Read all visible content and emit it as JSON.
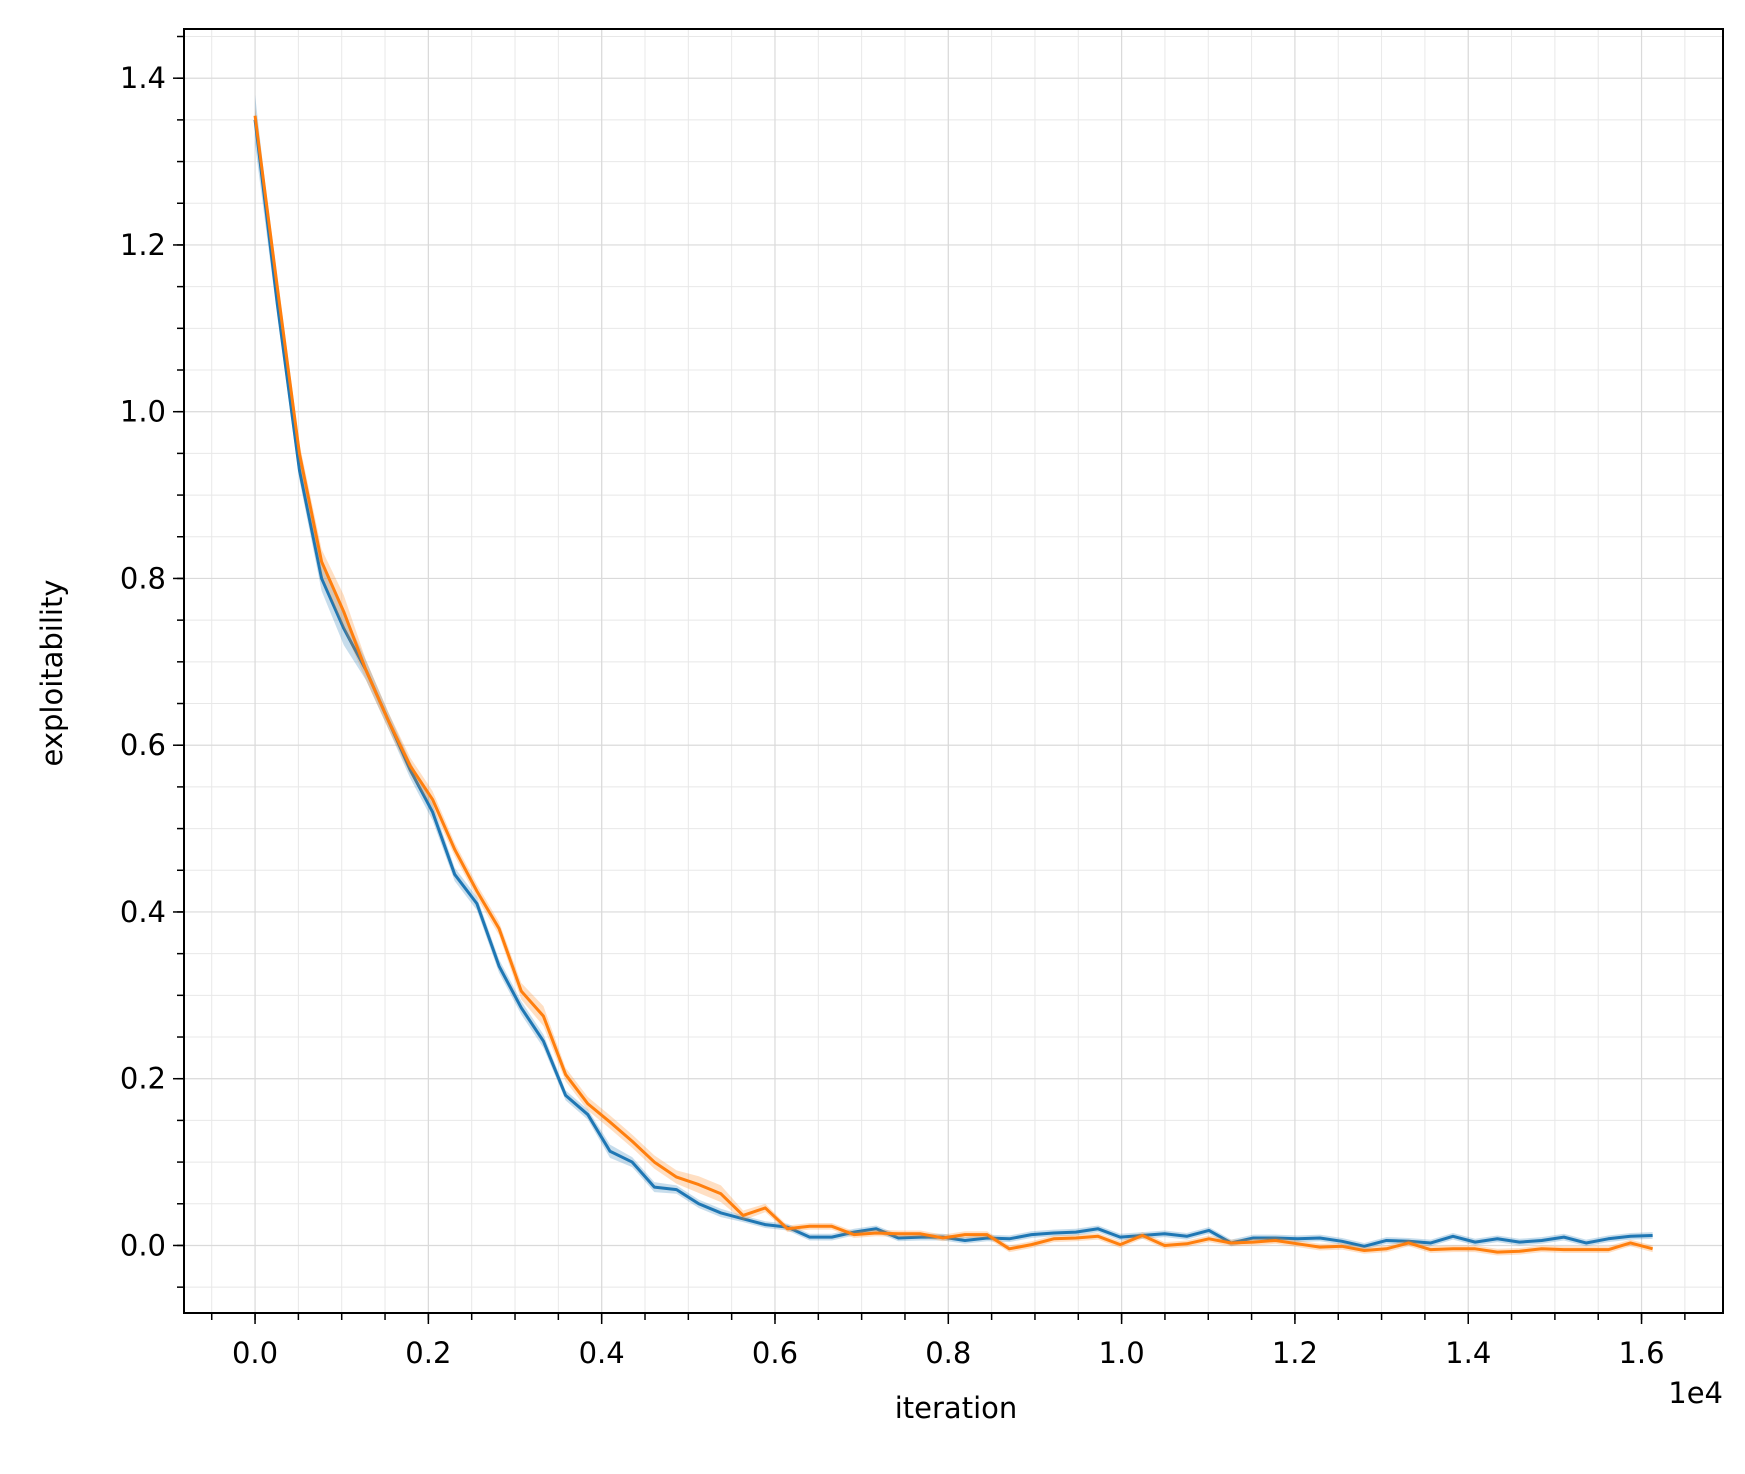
{
  "chart_data": {
    "type": "line",
    "xlabel": "iteration",
    "ylabel": "exploitability",
    "x_offset_text": "1e4",
    "x": [
      0,
      0.0256,
      0.0512,
      0.0768,
      0.1024,
      0.128,
      0.1536,
      0.1792,
      0.2048,
      0.2304,
      0.256,
      0.2816,
      0.3072,
      0.3328,
      0.3584,
      0.384,
      0.4096,
      0.4352,
      0.4608,
      0.4864,
      0.512,
      0.5376,
      0.5632,
      0.5888,
      0.6144,
      0.64,
      0.6656,
      0.6912,
      0.7168,
      0.7424,
      0.768,
      0.7936,
      0.8192,
      0.8448,
      0.8704,
      0.896,
      0.9216,
      0.9472,
      0.9728,
      0.9984,
      1.024,
      1.0496,
      1.0752,
      1.1008,
      1.1264,
      1.152,
      1.1776,
      1.2032,
      1.2288,
      1.2544,
      1.28,
      1.3056,
      1.3312,
      1.3568,
      1.3824,
      1.408,
      1.4336,
      1.4592,
      1.4848,
      1.5104,
      1.536,
      1.5616,
      1.5872,
      1.6128
    ],
    "series": [
      {
        "color": "#1f77b4",
        "values": [
          1.35,
          1.13,
          0.93,
          0.8,
          0.74,
          0.69,
          0.63,
          0.57,
          0.52,
          0.445,
          0.41,
          0.335,
          0.285,
          0.245,
          0.18,
          0.157,
          0.113,
          0.1,
          0.07,
          0.067,
          0.05,
          0.039,
          0.032,
          0.025,
          0.022,
          0.01,
          0.01,
          0.016,
          0.02,
          0.009,
          0.01,
          0.01,
          0.006,
          0.009,
          0.008,
          0.013,
          0.015,
          0.016,
          0.02,
          0.01,
          0.012,
          0.014,
          0.011,
          0.018,
          0.003,
          0.009,
          0.009,
          0.008,
          0.009,
          0.005,
          -0.001,
          0.006,
          0.005,
          0.003,
          0.011,
          0.004,
          0.008,
          0.004,
          0.006,
          0.01,
          0.003,
          0.008,
          0.011,
          0.012
        ],
        "errors": [
          0.03,
          0.015,
          0.012,
          0.015,
          0.02,
          0.012,
          0.01,
          0.01,
          0.01,
          0.008,
          0.008,
          0.008,
          0.008,
          0.008,
          0.006,
          0.006,
          0.008,
          0.006,
          0.006,
          0.005,
          0.005,
          0.005,
          0.004,
          0.004,
          0.004,
          0.004,
          0.004,
          0.004,
          0.004,
          0.004,
          0.004,
          0.004,
          0.004,
          0.004,
          0.004,
          0.004,
          0.004,
          0.004,
          0.004,
          0.004,
          0.004,
          0.004,
          0.004,
          0.004,
          0.004,
          0.004,
          0.004,
          0.004,
          0.004,
          0.004,
          0.004,
          0.004,
          0.004,
          0.004,
          0.004,
          0.004,
          0.004,
          0.004,
          0.004,
          0.004,
          0.004,
          0.004,
          0.004,
          0.004
        ]
      },
      {
        "color": "#ff7f0e",
        "values": [
          1.355,
          1.15,
          0.95,
          0.82,
          0.76,
          0.69,
          0.63,
          0.575,
          0.535,
          0.475,
          0.425,
          0.38,
          0.305,
          0.275,
          0.205,
          0.17,
          0.148,
          0.125,
          0.1,
          0.082,
          0.073,
          0.062,
          0.036,
          0.045,
          0.02,
          0.023,
          0.023,
          0.013,
          0.015,
          0.014,
          0.014,
          0.009,
          0.013,
          0.013,
          -0.004,
          0.001,
          0.008,
          0.009,
          0.011,
          0.001,
          0.012,
          0.0,
          0.002,
          0.008,
          0.003,
          0.004,
          0.006,
          0.002,
          -0.002,
          -0.001,
          -0.006,
          -0.004,
          0.003,
          -0.005,
          -0.004,
          -0.004,
          -0.008,
          -0.007,
          -0.004,
          -0.005,
          -0.005,
          -0.005,
          0.003,
          -0.004
        ],
        "errors": [
          0.01,
          0.015,
          0.012,
          0.015,
          0.02,
          0.012,
          0.01,
          0.01,
          0.01,
          0.008,
          0.008,
          0.008,
          0.01,
          0.012,
          0.008,
          0.008,
          0.008,
          0.008,
          0.008,
          0.008,
          0.01,
          0.01,
          0.006,
          0.005,
          0.004,
          0.004,
          0.004,
          0.004,
          0.004,
          0.004,
          0.004,
          0.004,
          0.004,
          0.004,
          0.004,
          0.004,
          0.004,
          0.004,
          0.004,
          0.004,
          0.004,
          0.004,
          0.004,
          0.004,
          0.004,
          0.004,
          0.004,
          0.004,
          0.004,
          0.004,
          0.004,
          0.004,
          0.004,
          0.004,
          0.004,
          0.004,
          0.004,
          0.004,
          0.004,
          0.004,
          0.004,
          0.004,
          0.004,
          0.004
        ]
      }
    ],
    "xlim": [
      -0.082,
      1.694
    ],
    "xticks": [
      {
        "value": 0,
        "label": "0.0"
      },
      0.2,
      0.4,
      0.6,
      0.8,
      {
        "value": 1,
        "label": "1.0"
      },
      1.2,
      1.4,
      1.6
    ],
    "ylim": [
      -0.081,
      1.459
    ],
    "yticks": [
      {
        "value": 0,
        "label": "0.0"
      },
      0.2,
      0.4,
      0.6,
      0.8,
      {
        "value": 1,
        "label": "1.0"
      },
      1.2,
      1.4
    ],
    "minor_step": 0.05,
    "grid": true
  }
}
